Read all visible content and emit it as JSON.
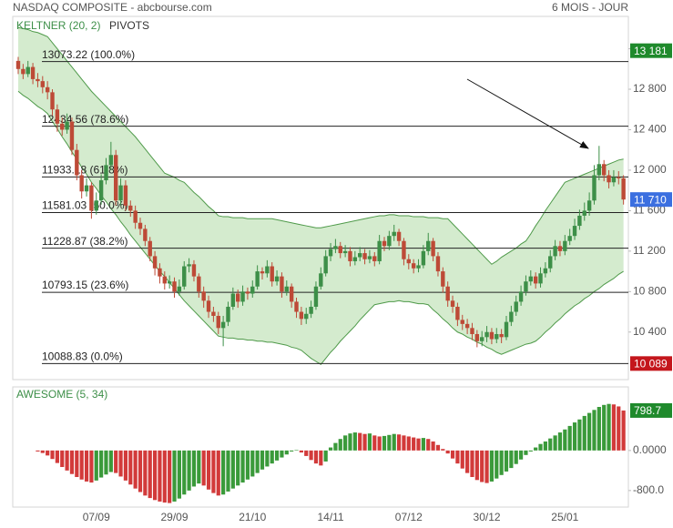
{
  "chart_data": [
    {
      "type": "candlestick",
      "title": "NASDAQ COMPOSITE - abcbourse.com",
      "subtitle": "6 MOIS - JOUR",
      "indicator_labels": [
        "KELTNER (20, 2)",
        "PIVOTS"
      ],
      "categories": [
        null,
        null,
        null,
        null,
        null,
        null,
        null,
        null,
        null,
        null,
        null,
        null,
        null,
        null,
        null,
        null,
        "07/09",
        null,
        null,
        null,
        null,
        null,
        null,
        null,
        null,
        null,
        null,
        null,
        null,
        null,
        null,
        null,
        "29/09",
        null,
        null,
        null,
        null,
        null,
        null,
        null,
        null,
        null,
        null,
        null,
        null,
        null,
        null,
        null,
        "21/10",
        null,
        null,
        null,
        null,
        null,
        null,
        null,
        null,
        null,
        null,
        null,
        null,
        null,
        null,
        null,
        "14/11",
        null,
        null,
        null,
        null,
        null,
        null,
        null,
        null,
        null,
        null,
        null,
        null,
        null,
        null,
        null,
        "07/12",
        null,
        null,
        null,
        null,
        null,
        null,
        null,
        null,
        null,
        null,
        null,
        null,
        null,
        null,
        null,
        "30/12",
        null,
        null,
        null,
        null,
        null,
        null,
        null,
        null,
        null,
        null,
        null,
        null,
        null,
        null,
        null,
        "25/01",
        null,
        null,
        null,
        null,
        null,
        null,
        null,
        null,
        null,
        null,
        null,
        null
      ],
      "open": [
        13080,
        13000,
        12950,
        13020,
        12900,
        12880,
        12820,
        12770,
        12600,
        12460,
        12400,
        12480,
        12200,
        11950,
        11790,
        11850,
        11600,
        11700,
        11900,
        12050,
        12150,
        11700,
        11850,
        11650,
        11600,
        11480,
        11420,
        11300,
        11150,
        11030,
        10950,
        10880,
        10900,
        10800,
        10850,
        11050,
        11070,
        10950,
        10800,
        10710,
        10600,
        10560,
        10440,
        10500,
        10650,
        10780,
        10700,
        10800,
        10780,
        10850,
        11000,
        10980,
        11050,
        10900,
        10950,
        10800,
        10850,
        10700,
        10600,
        10530,
        10580,
        10650,
        10850,
        10980,
        11150,
        11220,
        11250,
        11180,
        11200,
        11100,
        11140,
        11180,
        11120,
        11150,
        11100,
        11300,
        11250,
        11350,
        11390,
        11300,
        11120,
        11080,
        11030,
        11060,
        11200,
        11300,
        11150,
        11000,
        10850,
        10710,
        10650,
        10520,
        10480,
        10440,
        10380,
        10310,
        10350,
        10400,
        10330,
        10380,
        10350,
        10500,
        10600,
        10700,
        10800,
        10900,
        10950,
        10880,
        10980,
        11030,
        11150,
        11250,
        11200,
        11300,
        11350,
        11450,
        11550,
        11600,
        11700,
        11950,
        12060,
        11950,
        11880,
        11930,
        11920
      ],
      "high": [
        13120,
        13050,
        13080,
        13060,
        12960,
        12930,
        12880,
        12800,
        12650,
        12520,
        12560,
        12520,
        12260,
        12000,
        11920,
        11880,
        11780,
        11960,
        12120,
        12280,
        12200,
        11920,
        11900,
        11700,
        11650,
        11530,
        11460,
        11340,
        11200,
        11080,
        11000,
        10960,
        10940,
        10920,
        11100,
        11130,
        11110,
        10980,
        10850,
        10760,
        10650,
        10600,
        10560,
        10700,
        10840,
        10820,
        10860,
        10840,
        10910,
        11060,
        11040,
        11110,
        11090,
        11010,
        10990,
        10910,
        10880,
        10740,
        10650,
        10640,
        10710,
        10900,
        11040,
        11210,
        11280,
        11320,
        11290,
        11260,
        11240,
        11200,
        11240,
        11220,
        11210,
        11190,
        11360,
        11340,
        11400,
        11460,
        11420,
        11330,
        11170,
        11120,
        11120,
        11260,
        11380,
        11330,
        11190,
        11040,
        10900,
        10760,
        10690,
        10570,
        10530,
        10490,
        10420,
        10410,
        10460,
        10440,
        10440,
        10430,
        10560,
        10660,
        10760,
        10860,
        10960,
        11010,
        10990,
        11040,
        11090,
        11210,
        11310,
        11300,
        11360,
        11420,
        11520,
        11610,
        11680,
        11780,
        12050,
        12240,
        12100,
        12000,
        12000,
        11990,
        11950
      ],
      "low": [
        12950,
        12900,
        12920,
        12850,
        12820,
        12760,
        12700,
        12540,
        12380,
        12340,
        12360,
        12150,
        11900,
        11720,
        11740,
        11520,
        11560,
        11660,
        11860,
        12000,
        11650,
        11650,
        11600,
        11540,
        11420,
        11360,
        11250,
        11100,
        10960,
        10880,
        10820,
        10830,
        10740,
        10760,
        10820,
        10990,
        10900,
        10740,
        10640,
        10540,
        10500,
        10380,
        10260,
        10460,
        10620,
        10640,
        10660,
        10720,
        10740,
        10820,
        10920,
        10940,
        10850,
        10860,
        10740,
        10760,
        10640,
        10540,
        10470,
        10480,
        10540,
        10620,
        10820,
        10950,
        11100,
        11180,
        11130,
        11140,
        11050,
        11060,
        11100,
        11070,
        11080,
        11050,
        11070,
        11200,
        11210,
        11300,
        11250,
        11060,
        11020,
        10980,
        10990,
        11030,
        11160,
        11100,
        10950,
        10790,
        10650,
        10590,
        10460,
        10420,
        10380,
        10320,
        10250,
        10260,
        10300,
        10280,
        10290,
        10290,
        10320,
        10460,
        10560,
        10660,
        10760,
        10860,
        10830,
        10840,
        10940,
        10990,
        11110,
        11150,
        11160,
        11260,
        11310,
        11410,
        11500,
        11550,
        11660,
        11900,
        11890,
        11820,
        11840,
        11860,
        11660
      ],
      "close": [
        13000,
        12950,
        13020,
        12900,
        12880,
        12820,
        12770,
        12600,
        12460,
        12400,
        12480,
        12200,
        11950,
        11790,
        11850,
        11600,
        11700,
        11900,
        12050,
        12150,
        11700,
        11850,
        11650,
        11600,
        11480,
        11420,
        11300,
        11150,
        11030,
        10950,
        10880,
        10900,
        10800,
        10850,
        11050,
        11070,
        10950,
        10800,
        10710,
        10600,
        10560,
        10440,
        10500,
        10650,
        10780,
        10700,
        10800,
        10780,
        10850,
        11000,
        10980,
        11050,
        10900,
        10950,
        10800,
        10850,
        10700,
        10600,
        10530,
        10580,
        10650,
        10850,
        10980,
        11150,
        11220,
        11250,
        11180,
        11200,
        11100,
        11140,
        11180,
        11120,
        11150,
        11100,
        11300,
        11250,
        11350,
        11390,
        11300,
        11120,
        11080,
        11030,
        11060,
        11200,
        11300,
        11150,
        11000,
        10850,
        10710,
        10650,
        10520,
        10480,
        10440,
        10380,
        10310,
        10350,
        10400,
        10330,
        10380,
        10350,
        10500,
        10600,
        10700,
        10800,
        10900,
        10950,
        10880,
        10980,
        11030,
        11150,
        11250,
        11200,
        11300,
        11350,
        11450,
        11550,
        11600,
        11700,
        11950,
        12060,
        11950,
        11880,
        11930,
        11920,
        11710
      ],
      "keltner": {
        "color": "#4f9a4a",
        "fill": "#cde8c6",
        "upper": [
          13410,
          13400,
          13390,
          13370,
          13360,
          13340,
          13320,
          13260,
          13200,
          13140,
          13080,
          13020,
          12960,
          12900,
          12840,
          12780,
          12730,
          12680,
          12630,
          12580,
          12530,
          12480,
          12430,
          12380,
          12330,
          12270,
          12210,
          12150,
          12090,
          12030,
          11970,
          11950,
          11930,
          11900,
          11880,
          11830,
          11780,
          11740,
          11690,
          11640,
          11600,
          11550,
          11540,
          11540,
          11530,
          11530,
          11530,
          11520,
          11520,
          11520,
          11520,
          11520,
          11520,
          11510,
          11500,
          11490,
          11480,
          11470,
          11460,
          11450,
          11440,
          11430,
          11430,
          11440,
          11450,
          11460,
          11470,
          11480,
          11490,
          11500,
          11510,
          11520,
          11530,
          11540,
          11550,
          11550,
          11560,
          11560,
          11550,
          11550,
          11550,
          11540,
          11540,
          11540,
          11530,
          11530,
          11530,
          11520,
          11520,
          11470,
          11420,
          11370,
          11320,
          11270,
          11220,
          11170,
          11120,
          11070,
          11100,
          11140,
          11170,
          11200,
          11230,
          11270,
          11300,
          11370,
          11450,
          11520,
          11600,
          11670,
          11740,
          11810,
          11880,
          11900,
          11920,
          11940,
          11960,
          11980,
          12000,
          12020,
          12040,
          12060,
          12080,
          12100,
          12110
        ],
        "lower": [
          12780,
          12740,
          12710,
          12670,
          12630,
          12600,
          12560,
          12480,
          12410,
          12330,
          12260,
          12180,
          12110,
          12030,
          11960,
          11880,
          11820,
          11750,
          11690,
          11620,
          11560,
          11490,
          11430,
          11360,
          11300,
          11240,
          11180,
          11120,
          11060,
          11000,
          10950,
          10890,
          10830,
          10770,
          10710,
          10660,
          10610,
          10560,
          10510,
          10460,
          10410,
          10360,
          10350,
          10340,
          10340,
          10330,
          10330,
          10320,
          10320,
          10310,
          10310,
          10300,
          10300,
          10290,
          10280,
          10270,
          10250,
          10240,
          10220,
          10180,
          10140,
          10110,
          10080,
          10140,
          10200,
          10250,
          10310,
          10360,
          10410,
          10460,
          10520,
          10570,
          10620,
          10670,
          10680,
          10690,
          10700,
          10700,
          10710,
          10700,
          10700,
          10690,
          10680,
          10680,
          10670,
          10620,
          10580,
          10530,
          10490,
          10440,
          10400,
          10380,
          10350,
          10330,
          10300,
          10280,
          10250,
          10230,
          10200,
          10180,
          10200,
          10220,
          10240,
          10260,
          10280,
          10290,
          10310,
          10350,
          10400,
          10440,
          10490,
          10530,
          10580,
          10620,
          10660,
          10690,
          10730,
          10760,
          10800,
          10830,
          10870,
          10900,
          10930,
          10970,
          11000
        ]
      },
      "pivots": [
        {
          "value": 13073.22,
          "label": "13073.22  (100.0%)"
        },
        {
          "value": 12434.56,
          "label": "12434.56  (78.6%)"
        },
        {
          "value": 11933.18,
          "label": "11933.18  (61.8%)"
        },
        {
          "value": 11581.03,
          "label": "11581.03  (50.0%)"
        },
        {
          "value": 11228.87,
          "label": "11228.87  (38.2%)"
        },
        {
          "value": 10793.15,
          "label": "10793.15  (23.6%)"
        },
        {
          "value": 10088.83,
          "label": "10088.83  (0.0%)"
        }
      ],
      "price_tags": [
        {
          "value": 13181,
          "label": "13 181",
          "color": "#1f8a2c"
        },
        {
          "value": 11710,
          "label": "11 710",
          "color": "#3b6fe0"
        },
        {
          "value": 10089,
          "label": "10 089",
          "color": "#c4161c"
        }
      ],
      "ylim": [
        9930,
        13520
      ],
      "yticks": [
        {
          "value": 10400,
          "label": "10 400"
        },
        {
          "value": 10800,
          "label": "10 800"
        },
        {
          "value": 11200,
          "label": "11 200"
        },
        {
          "value": 11600,
          "label": "11 600"
        },
        {
          "value": 12000,
          "label": "12 000"
        },
        {
          "value": 12400,
          "label": "12 400"
        },
        {
          "value": 12800,
          "label": "12 800"
        },
        {
          "value": 13200,
          "label": "13 200"
        }
      ],
      "up_color": "#3d8f48",
      "down_color": "#bd4a37"
    },
    {
      "type": "bar",
      "title": "AWESOME (5, 34)",
      "values": [
        null,
        null,
        null,
        null,
        -20,
        -50,
        -100,
        -170,
        -250,
        -330,
        -400,
        -470,
        -530,
        -580,
        -620,
        -640,
        -600,
        -540,
        -480,
        -430,
        -450,
        -520,
        -600,
        -680,
        -760,
        -830,
        -900,
        -950,
        -990,
        -1020,
        -1040,
        -1050,
        -1020,
        -960,
        -880,
        -800,
        -720,
        -660,
        -700,
        -780,
        -850,
        -900,
        -880,
        -820,
        -760,
        -700,
        -640,
        -580,
        -520,
        -450,
        -380,
        -320,
        -260,
        -200,
        -140,
        -80,
        -20,
        10,
        -40,
        -110,
        -190,
        -260,
        -300,
        -220,
        60,
        150,
        230,
        300,
        340,
        360,
        350,
        330,
        340,
        300,
        280,
        290,
        310,
        330,
        320,
        300,
        280,
        260,
        240,
        250,
        230,
        180,
        110,
        30,
        -60,
        -160,
        -260,
        -360,
        -450,
        -530,
        -590,
        -630,
        -650,
        -620,
        -560,
        -490,
        -420,
        -350,
        -270,
        -180,
        -90,
        -20,
        60,
        130,
        180,
        240,
        300,
        360,
        420,
        490,
        560,
        620,
        690,
        750,
        810,
        870,
        910,
        930,
        920,
        880,
        798.7
      ],
      "ylim": [
        -1130,
        1270
      ],
      "yticks": [
        {
          "value": 0,
          "label": "0.0000"
        },
        {
          "value": -800,
          "label": "-800.0"
        }
      ],
      "price_tags": [
        {
          "value": 798.7,
          "label": "798.7",
          "color": "#1f8a2c"
        }
      ],
      "up_color": "#3a9a3a",
      "down_color": "#d23a3a"
    }
  ]
}
